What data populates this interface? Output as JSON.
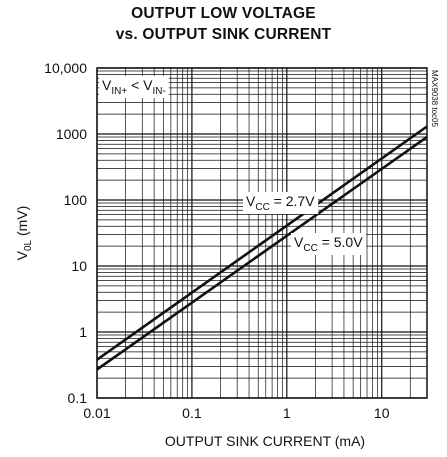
{
  "chart_data": {
    "type": "line",
    "title": "OUTPUT LOW VOLTAGE",
    "subtitle": "vs. OUTPUT SINK CURRENT",
    "xlabel": "OUTPUT SINK CURRENT (mA)",
    "ylabel_main": "V",
    "ylabel_sub": "0L",
    "ylabel_unit": " (mV)",
    "xscale": "log",
    "yscale": "log",
    "xlim": [
      0.01,
      30
    ],
    "ylim": [
      0.1,
      10000
    ],
    "grid": true,
    "x_ticks": [
      {
        "value": 0.01,
        "label": "0.01"
      },
      {
        "value": 0.1,
        "label": "0.1"
      },
      {
        "value": 1,
        "label": "1"
      },
      {
        "value": 10,
        "label": "10"
      }
    ],
    "y_ticks": [
      {
        "value": 0.1,
        "label": "0.1"
      },
      {
        "value": 1,
        "label": "1"
      },
      {
        "value": 10,
        "label": "10"
      },
      {
        "value": 100,
        "label": "100"
      },
      {
        "value": 1000,
        "label": "1000"
      },
      {
        "value": 10000,
        "label": "10,000"
      }
    ],
    "condition": {
      "a": "V",
      "a_sub": "IN+",
      "op": " < ",
      "b": "V",
      "b_sub": "IN-"
    },
    "series": [
      {
        "label_main": "V",
        "label_sub": "CC",
        "label_rest": " = 2.7V",
        "x": [
          0.01,
          30
        ],
        "y": [
          0.38,
          1300
        ]
      },
      {
        "label_main": "V",
        "label_sub": "CC",
        "label_rest": " = 5.0V",
        "x": [
          0.01,
          30
        ],
        "y": [
          0.27,
          900
        ]
      }
    ],
    "part_code": "MAX9038 toc05"
  }
}
